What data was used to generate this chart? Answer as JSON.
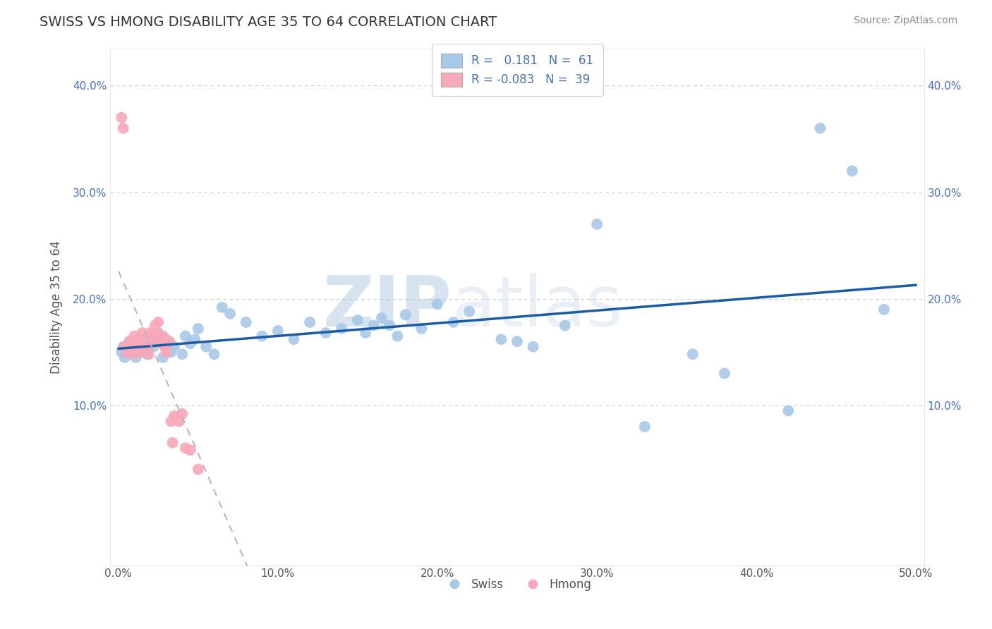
{
  "title": "SWISS VS HMONG DISABILITY AGE 35 TO 64 CORRELATION CHART",
  "source_text": "Source: ZipAtlas.com",
  "ylabel": "Disability Age 35 to 64",
  "xlim": [
    -0.005,
    0.505
  ],
  "ylim": [
    -0.05,
    0.435
  ],
  "xticks": [
    0.0,
    0.1,
    0.2,
    0.3,
    0.4,
    0.5
  ],
  "yticks": [
    0.1,
    0.2,
    0.3,
    0.4
  ],
  "ytick_labels": [
    "10.0%",
    "20.0%",
    "30.0%",
    "40.0%"
  ],
  "xtick_labels": [
    "0.0%",
    "10.0%",
    "20.0%",
    "30.0%",
    "40.0%",
    "50.0%"
  ],
  "swiss_color": "#a8c8e8",
  "hmong_color": "#f8a8b8",
  "swiss_line_color": "#1a5ca8",
  "hmong_line_color": "#c8c8d8",
  "swiss_R": 0.181,
  "swiss_N": 61,
  "hmong_R": -0.083,
  "hmong_N": 39,
  "watermark_zip": "ZIP",
  "watermark_atlas": "atlas",
  "background_color": "#ffffff",
  "grid_color": "#cccccc",
  "swiss_x": [
    0.002,
    0.003,
    0.004,
    0.005,
    0.006,
    0.007,
    0.008,
    0.009,
    0.01,
    0.011,
    0.012,
    0.013,
    0.014,
    0.016,
    0.018,
    0.02,
    0.022,
    0.025,
    0.028,
    0.03,
    0.033,
    0.035,
    0.04,
    0.042,
    0.045,
    0.048,
    0.05,
    0.055,
    0.06,
    0.065,
    0.07,
    0.08,
    0.09,
    0.1,
    0.11,
    0.12,
    0.13,
    0.14,
    0.15,
    0.155,
    0.16,
    0.165,
    0.17,
    0.175,
    0.18,
    0.19,
    0.2,
    0.21,
    0.22,
    0.24,
    0.25,
    0.26,
    0.28,
    0.3,
    0.33,
    0.36,
    0.38,
    0.42,
    0.44,
    0.46,
    0.48
  ],
  "swiss_y": [
    0.15,
    0.155,
    0.145,
    0.155,
    0.15,
    0.16,
    0.148,
    0.152,
    0.156,
    0.145,
    0.158,
    0.162,
    0.15,
    0.155,
    0.148,
    0.16,
    0.155,
    0.168,
    0.145,
    0.162,
    0.15,
    0.155,
    0.148,
    0.165,
    0.158,
    0.162,
    0.172,
    0.155,
    0.148,
    0.192,
    0.186,
    0.178,
    0.165,
    0.17,
    0.162,
    0.178,
    0.168,
    0.172,
    0.18,
    0.168,
    0.175,
    0.182,
    0.175,
    0.165,
    0.185,
    0.172,
    0.195,
    0.178,
    0.188,
    0.162,
    0.16,
    0.155,
    0.175,
    0.27,
    0.08,
    0.148,
    0.13,
    0.095,
    0.36,
    0.32,
    0.19
  ],
  "hmong_x": [
    0.002,
    0.003,
    0.004,
    0.005,
    0.006,
    0.007,
    0.008,
    0.009,
    0.01,
    0.011,
    0.012,
    0.013,
    0.014,
    0.015,
    0.016,
    0.017,
    0.018,
    0.019,
    0.02,
    0.021,
    0.022,
    0.023,
    0.024,
    0.025,
    0.026,
    0.027,
    0.028,
    0.029,
    0.03,
    0.031,
    0.032,
    0.033,
    0.034,
    0.035,
    0.038,
    0.04,
    0.042,
    0.045,
    0.05
  ],
  "hmong_y": [
    0.37,
    0.36,
    0.155,
    0.15,
    0.155,
    0.16,
    0.155,
    0.148,
    0.165,
    0.158,
    0.162,
    0.155,
    0.15,
    0.168,
    0.155,
    0.162,
    0.155,
    0.148,
    0.168,
    0.158,
    0.165,
    0.175,
    0.168,
    0.178,
    0.162,
    0.158,
    0.165,
    0.155,
    0.15,
    0.158,
    0.16,
    0.085,
    0.065,
    0.09,
    0.085,
    0.092,
    0.06,
    0.058,
    0.04
  ]
}
